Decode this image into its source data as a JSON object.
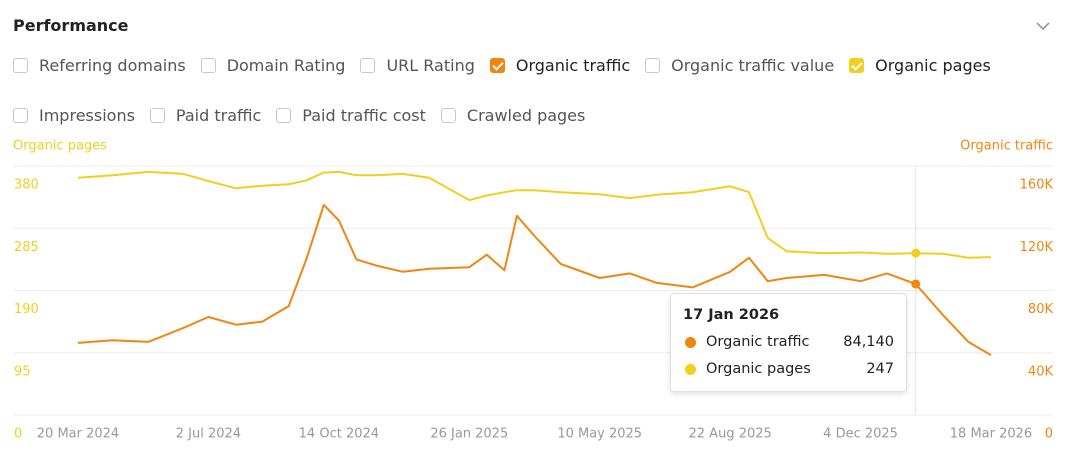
{
  "header": {
    "title": "Performance"
  },
  "filters": [
    {
      "label": "Referring domains",
      "checked": false
    },
    {
      "label": "Domain Rating",
      "checked": false
    },
    {
      "label": "URL Rating",
      "checked": false
    },
    {
      "label": "Organic traffic",
      "checked": true,
      "color": "#f0860f"
    },
    {
      "label": "Organic traffic value",
      "checked": false
    },
    {
      "label": "Organic pages",
      "checked": true,
      "color": "#f2cf1d"
    },
    {
      "label": "Impressions",
      "checked": false
    },
    {
      "label": "Paid traffic",
      "checked": false
    },
    {
      "label": "Paid traffic cost",
      "checked": false
    },
    {
      "label": "Crawled pages",
      "checked": false
    }
  ],
  "chart_data": {
    "type": "line",
    "y_label": "Organic pages",
    "y2_label": "Organic traffic",
    "x": [
      "2024-03-20",
      "2024-04-17",
      "2024-05-15",
      "2024-06-12",
      "2024-07-02",
      "2024-07-24",
      "2024-08-14",
      "2024-09-04",
      "2024-09-18",
      "2024-10-02",
      "2024-10-14",
      "2024-10-28",
      "2024-11-13",
      "2024-12-04",
      "2024-12-25",
      "2025-01-26",
      "2025-02-09",
      "2025-02-23",
      "2025-03-05",
      "2025-03-19",
      "2025-04-09",
      "2025-05-10",
      "2025-06-03",
      "2025-06-24",
      "2025-07-23",
      "2025-08-22",
      "2025-09-06",
      "2025-09-21",
      "2025-10-06",
      "2025-11-05",
      "2025-12-04",
      "2025-12-25",
      "2026-01-17",
      "2026-02-08",
      "2026-02-28",
      "2026-03-18"
    ],
    "xlim": [
      "2024-03-20",
      "2026-03-18"
    ],
    "xticks": [
      {
        "value": "2024-03-20",
        "label": "20 Mar 2024"
      },
      {
        "value": "2024-07-02",
        "label": "2 Jul 2024"
      },
      {
        "value": "2024-10-14",
        "label": "14 Oct 2024"
      },
      {
        "value": "2025-01-26",
        "label": "26 Jan 2025"
      },
      {
        "value": "2025-05-10",
        "label": "10 May 2025"
      },
      {
        "value": "2025-08-22",
        "label": "22 Aug 2025"
      },
      {
        "value": "2025-12-04",
        "label": "4 Dec 2025"
      },
      {
        "value": "2026-03-18",
        "label": "18 Mar 2026"
      }
    ],
    "ylim": [
      0,
      380
    ],
    "yticks": [
      0,
      95,
      190,
      285,
      380
    ],
    "y2lim": [
      0,
      160000
    ],
    "y2ticks": [
      0,
      {
        "value": 40000,
        "label": "40K"
      },
      {
        "value": 80000,
        "label": "80K"
      },
      {
        "value": 120000,
        "label": "120K"
      },
      {
        "value": 160000,
        "label": "160K"
      }
    ],
    "grid": true,
    "series": [
      {
        "name": "Organic traffic",
        "color": "#f0860f",
        "axis": "y2",
        "values": [
          46300,
          48000,
          47000,
          56000,
          63000,
          58000,
          60000,
          70000,
          100000,
          135000,
          125000,
          100000,
          96000,
          92000,
          94000,
          95000,
          103000,
          93000,
          128000,
          115000,
          97000,
          88000,
          91000,
          85000,
          82000,
          92000,
          101000,
          86000,
          88000,
          90000,
          86000,
          91000,
          84140,
          64000,
          47000,
          38500
        ]
      },
      {
        "name": "Organic pages",
        "color": "#f2cf1d",
        "values": [
          362,
          366,
          371,
          368,
          357,
          346,
          350,
          352,
          358,
          370,
          371,
          366,
          366,
          368,
          362,
          328,
          335,
          340,
          343,
          343,
          340,
          337,
          331,
          336,
          340,
          349,
          340,
          270,
          250,
          247,
          248,
          246,
          247,
          246,
          240,
          241
        ]
      }
    ],
    "tooltip": {
      "title": "17 Jan 2026",
      "index": 32,
      "items": [
        {
          "name": "Organic traffic",
          "label": "84,140"
        },
        {
          "name": "Organic pages",
          "label": "247"
        }
      ]
    }
  }
}
